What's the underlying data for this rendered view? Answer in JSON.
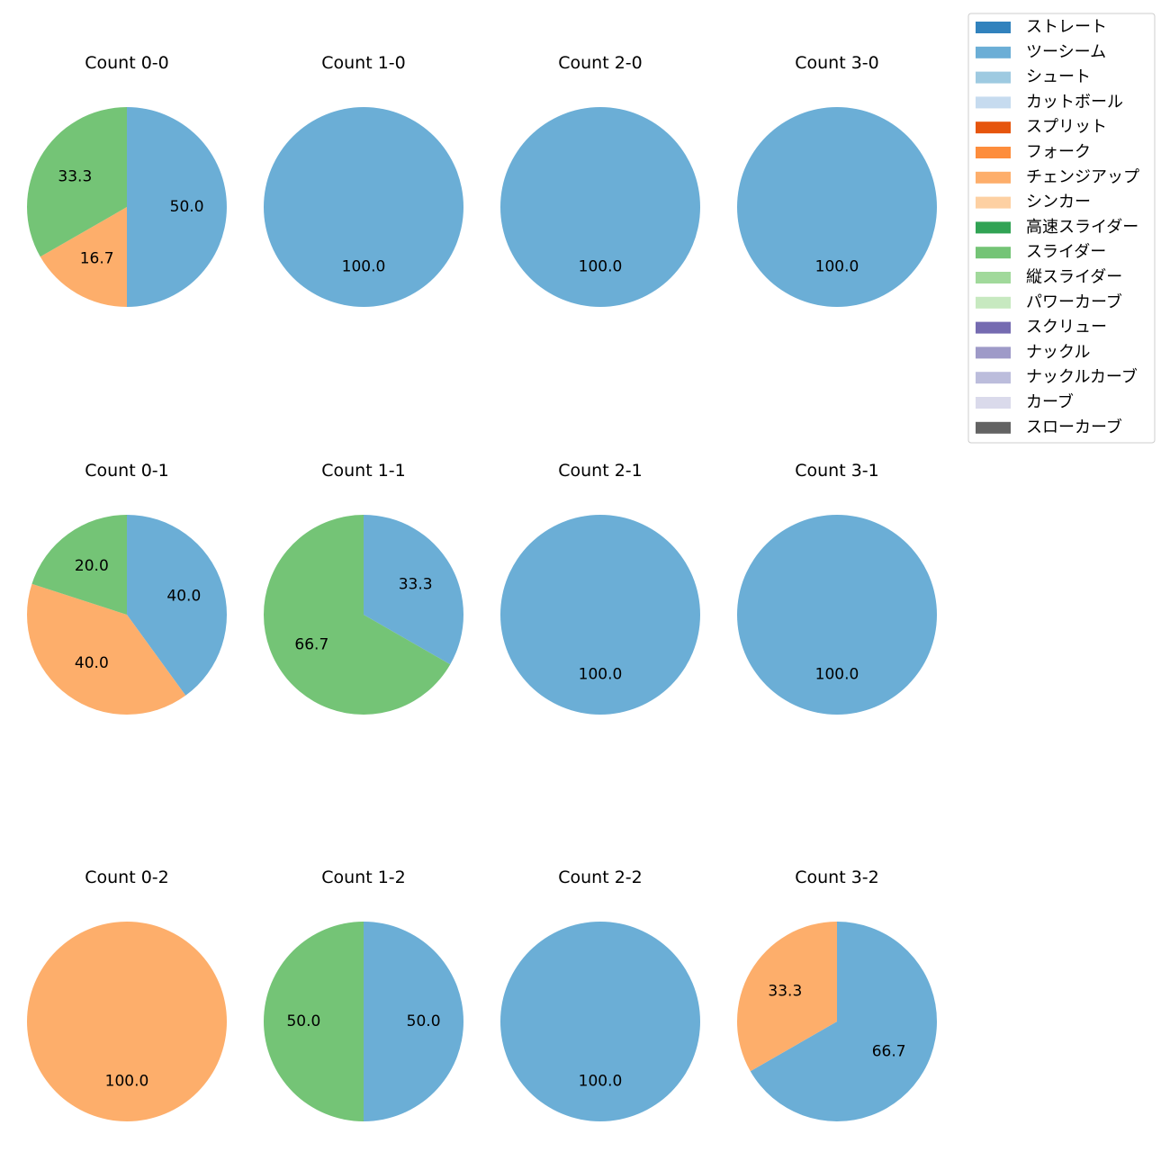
{
  "legend": {
    "items": [
      {
        "label": "ストレート",
        "color": "#3182bd"
      },
      {
        "label": "ツーシーム",
        "color": "#6baed6"
      },
      {
        "label": "シュート",
        "color": "#9ecae1"
      },
      {
        "label": "カットボール",
        "color": "#c6dbef"
      },
      {
        "label": "スプリット",
        "color": "#e6550d"
      },
      {
        "label": "フォーク",
        "color": "#fd8d3c"
      },
      {
        "label": "チェンジアップ",
        "color": "#fdae6b"
      },
      {
        "label": "シンカー",
        "color": "#fdd0a2"
      },
      {
        "label": "高速スライダー",
        "color": "#31a354"
      },
      {
        "label": "スライダー",
        "color": "#74c476"
      },
      {
        "label": "縦スライダー",
        "color": "#a1d99b"
      },
      {
        "label": "パワーカーブ",
        "color": "#c7e9c0"
      },
      {
        "label": "スクリュー",
        "color": "#756bb1"
      },
      {
        "label": "ナックル",
        "color": "#9e9ac8"
      },
      {
        "label": "ナックルカーブ",
        "color": "#bcbddc"
      },
      {
        "label": "カーブ",
        "color": "#dadaeb"
      },
      {
        "label": "スローカーブ",
        "color": "#636363"
      }
    ]
  },
  "chart_data": [
    {
      "type": "pie",
      "title": "Count 0-0",
      "slices": [
        {
          "label": "ツーシーム",
          "value": 50.0
        },
        {
          "label": "チェンジアップ",
          "value": 16.7
        },
        {
          "label": "スライダー",
          "value": 33.3
        }
      ]
    },
    {
      "type": "pie",
      "title": "Count 1-0",
      "slices": [
        {
          "label": "ツーシーム",
          "value": 100.0
        }
      ]
    },
    {
      "type": "pie",
      "title": "Count 2-0",
      "slices": [
        {
          "label": "ツーシーム",
          "value": 100.0
        }
      ]
    },
    {
      "type": "pie",
      "title": "Count 3-0",
      "slices": [
        {
          "label": "ツーシーム",
          "value": 100.0
        }
      ]
    },
    {
      "type": "pie",
      "title": "Count 0-1",
      "slices": [
        {
          "label": "ツーシーム",
          "value": 40.0
        },
        {
          "label": "チェンジアップ",
          "value": 40.0
        },
        {
          "label": "スライダー",
          "value": 20.0
        }
      ]
    },
    {
      "type": "pie",
      "title": "Count 1-1",
      "slices": [
        {
          "label": "ツーシーム",
          "value": 33.3
        },
        {
          "label": "スライダー",
          "value": 66.7
        }
      ]
    },
    {
      "type": "pie",
      "title": "Count 2-1",
      "slices": [
        {
          "label": "ツーシーム",
          "value": 100.0
        }
      ]
    },
    {
      "type": "pie",
      "title": "Count 3-1",
      "slices": [
        {
          "label": "ツーシーム",
          "value": 100.0
        }
      ]
    },
    {
      "type": "pie",
      "title": "Count 0-2",
      "slices": [
        {
          "label": "チェンジアップ",
          "value": 100.0
        }
      ]
    },
    {
      "type": "pie",
      "title": "Count 1-2",
      "slices": [
        {
          "label": "ツーシーム",
          "value": 50.0
        },
        {
          "label": "スライダー",
          "value": 50.0
        }
      ]
    },
    {
      "type": "pie",
      "title": "Count 2-2",
      "slices": [
        {
          "label": "ツーシーム",
          "value": 100.0
        }
      ]
    },
    {
      "type": "pie",
      "title": "Count 3-2",
      "slices": [
        {
          "label": "ツーシーム",
          "value": 66.7
        },
        {
          "label": "チェンジアップ",
          "value": 33.3
        }
      ]
    }
  ]
}
